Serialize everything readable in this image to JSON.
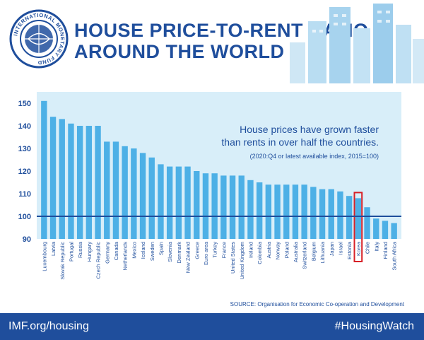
{
  "header": {
    "title_line1": "HOUSE PRICE-TO-RENT RATIO",
    "title_line2": "AROUND THE WORLD",
    "logo_text": "INTERNATIONAL MONETARY FUND"
  },
  "annotation": {
    "line1": "House prices have grown faster",
    "line2": "than rents in over half the countries.",
    "note": "(2020:Q4 or latest available index, 2015=100)"
  },
  "source": "SOURCE: Organisation for Economic Co-operation and Development",
  "footer": {
    "left": "IMF.org/housing",
    "right": "#HousingWatch"
  },
  "colors": {
    "bar": "#4db0e6",
    "highlight": "#d71f26",
    "baseline": "#1f4e9c",
    "panel": "#d8eef9",
    "brand": "#1f4e9c"
  },
  "chart_data": {
    "type": "bar",
    "categories": [
      "Luxembourg",
      "Latvia",
      "Slovak Republic",
      "Portugal",
      "Russia",
      "Hungary",
      "Czech Republic",
      "Germany",
      "Canada",
      "Netherlands",
      "Mexico",
      "Iceland",
      "Sweden",
      "Spain",
      "Slovenia",
      "Denmark",
      "New Zealand",
      "Greece",
      "Euro area",
      "Turkey",
      "France",
      "United States",
      "United Kingdom",
      "Ireland",
      "Colombia",
      "Austria",
      "Norway",
      "Poland",
      "Australia",
      "Switzerland",
      "Belgium",
      "Lithuania",
      "Japan",
      "Israel",
      "Estonia",
      "Korea",
      "Chile",
      "Italy",
      "Finland",
      "South Africa"
    ],
    "values": [
      151,
      144,
      143,
      141,
      140,
      140,
      140,
      133,
      133,
      131,
      130,
      128,
      126,
      123,
      122,
      122,
      122,
      120,
      119,
      119,
      118,
      118,
      118,
      116,
      115,
      114,
      114,
      114,
      114,
      114,
      113,
      112,
      112,
      111,
      109,
      108,
      104,
      99,
      98,
      97
    ],
    "highlight": "Korea",
    "reference_line": 100,
    "ylim": [
      90,
      155
    ],
    "yticks": [
      90,
      100,
      110,
      120,
      130,
      140,
      150
    ]
  }
}
